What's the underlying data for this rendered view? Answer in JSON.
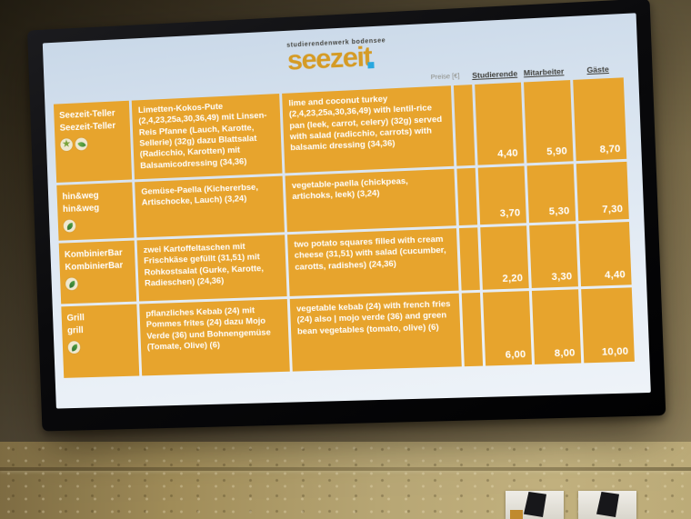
{
  "logo": {
    "tagline": "studierendenwerk bodensee",
    "brand": "seezeit"
  },
  "menu": {
    "price_unit_label": "Preise [€]",
    "columns": [
      "Studierende",
      "Mitarbeiter",
      "Gäste"
    ],
    "rows": [
      {
        "station_de": "Seezeit-Teller",
        "station_en": "Seezeit-Teller",
        "icons": [
          "star-icon",
          "sprout-icon"
        ],
        "desc_de": "Limetten-Kokos-Pute (2,4,23,25a,30,36,49) mit Linsen-Reis Pfanne (Lauch, Karotte, Sellerie) (32g) dazu Blattsalat (Radicchio, Karotten) mit Balsamicodressing (34,36)",
        "desc_en": "lime and coconut turkey (2,4,23,25a,30,36,49) with lentil-rice pan (leek, carrot, celery) (32g) served with salad (radicchio, carrots) with balsamic dressing (34,36)",
        "prices": [
          "4,40",
          "5,90",
          "8,70"
        ]
      },
      {
        "station_de": "hin&weg",
        "station_en": "hin&weg",
        "icons": [
          "leaf-icon"
        ],
        "desc_de": "Gemüse-Paella (Kichererbse, Artischocke, Lauch) (3,24)",
        "desc_en": "vegetable-paella (chickpeas, artichoks, leek) (3,24)",
        "prices": [
          "3,70",
          "5,30",
          "7,30"
        ]
      },
      {
        "station_de": "KombinierBar",
        "station_en": "KombinierBar",
        "icons": [
          "leaf-icon"
        ],
        "desc_de": "zwei Kartoffeltaschen mit Frischkäse gefüllt (31,51) mit Rohkostsalat (Gurke, Karotte, Radieschen) (24,36)",
        "desc_en": "two potato squares filled with cream cheese (31,51) with salad (cucumber, carotts, radishes) (24,36)",
        "prices": [
          "2,20",
          "3,30",
          "4,40"
        ]
      },
      {
        "station_de": "Grill",
        "station_en": "grill",
        "icons": [
          "leaf-icon"
        ],
        "desc_de": "pflanzliches Kebab (24) mit Pommes frites (24) dazu Mojo Verde (36) und Bohnengemüse (Tomate, Olive) (6)",
        "desc_en": "vegetable kebab (24) with french fries (24) also | mojo verde (36) and green bean vegetables (tomato, olive) (6)",
        "prices": [
          "6,00",
          "8,00",
          "10,00"
        ]
      }
    ]
  },
  "colors": {
    "table_orange": "#e7a42d",
    "brand_orange": "#d59b25",
    "logo_dot_blue": "#29a8df",
    "screen_tint": "#d9e4f0",
    "text_on_orange": "#ffffff"
  }
}
